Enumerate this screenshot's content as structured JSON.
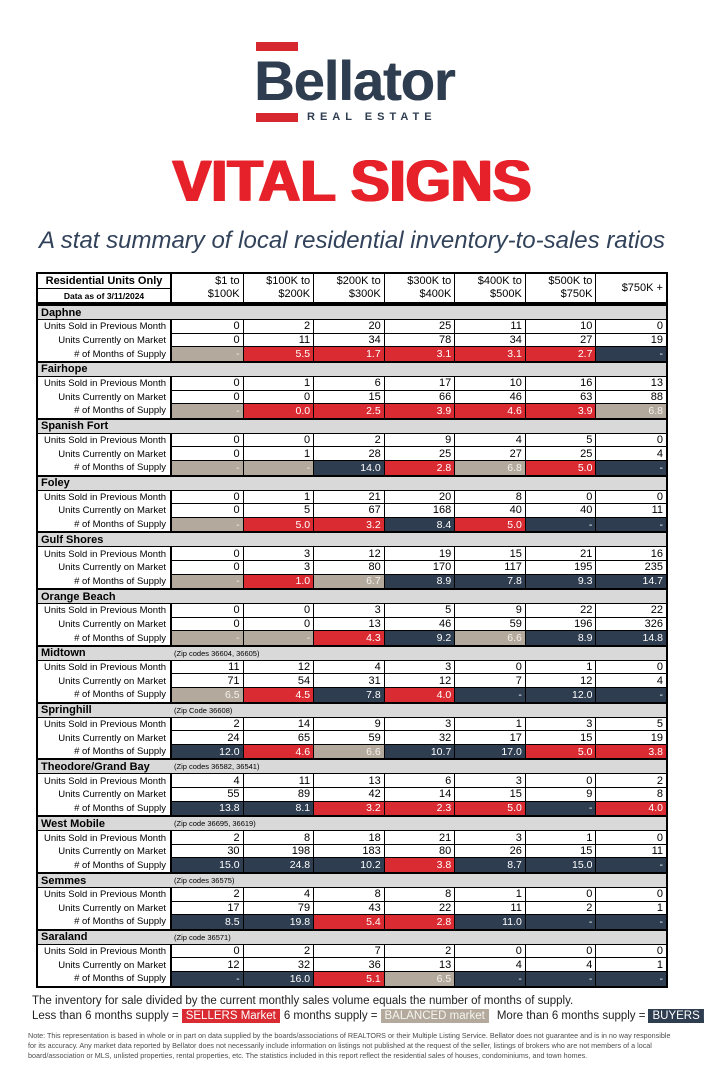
{
  "brand": {
    "name": "Bellator",
    "tagline": "REAL ESTATE"
  },
  "title": "VITAL SIGNS",
  "subtitle": "A stat summary of local residential inventory-to-sales ratios",
  "colors": {
    "red": "#d7282f",
    "title_red": "#e62129",
    "navy": "#2e3d50",
    "sellers": "#d92b31",
    "balanced": "#b3a99c",
    "buyers": "#2e3d50",
    "area_header_bg": "#d9d9d9"
  },
  "table": {
    "corner": {
      "line1": "Residential Units Only",
      "line2": "Data as of 3/11/2024"
    },
    "columns": [
      {
        "top": "$1 to",
        "bottom": "$100K"
      },
      {
        "top": "$100K to",
        "bottom": "$200K"
      },
      {
        "top": "$200K to",
        "bottom": "$300K"
      },
      {
        "top": "$300K to",
        "bottom": "$400K"
      },
      {
        "top": "$400K to",
        "bottom": "$500K"
      },
      {
        "top": "$500K to",
        "bottom": "$750K"
      },
      {
        "top": "$750K +",
        "bottom": ""
      }
    ],
    "row_labels": {
      "sold": "Units Sold in Previous Month",
      "on_market": "Units Currently on Market",
      "supply": "# of Months of Supply"
    },
    "areas": [
      {
        "name": "Daphne",
        "zip_note": "",
        "sold": [
          "0",
          "2",
          "20",
          "25",
          "11",
          "10",
          "0"
        ],
        "on_market": [
          "0",
          "11",
          "34",
          "78",
          "34",
          "27",
          "19"
        ],
        "supply": [
          "-",
          "5.5",
          "1.7",
          "3.1",
          "3.1",
          "2.7",
          "-"
        ],
        "supply_market": [
          "balanced",
          "sellers",
          "sellers",
          "sellers",
          "sellers",
          "sellers",
          "buyers"
        ]
      },
      {
        "name": "Fairhope",
        "zip_note": "",
        "sold": [
          "0",
          "1",
          "6",
          "17",
          "10",
          "16",
          "13"
        ],
        "on_market": [
          "0",
          "0",
          "15",
          "66",
          "46",
          "63",
          "88"
        ],
        "supply": [
          "-",
          "0.0",
          "2.5",
          "3.9",
          "4.6",
          "3.9",
          "6.8"
        ],
        "supply_market": [
          "balanced",
          "sellers",
          "sellers",
          "sellers",
          "sellers",
          "sellers",
          "balanced"
        ]
      },
      {
        "name": "Spanish Fort",
        "zip_note": "",
        "sold": [
          "0",
          "0",
          "2",
          "9",
          "4",
          "5",
          "0"
        ],
        "on_market": [
          "0",
          "1",
          "28",
          "25",
          "27",
          "25",
          "4"
        ],
        "supply": [
          "-",
          "-",
          "14.0",
          "2.8",
          "6.8",
          "5.0",
          "-"
        ],
        "supply_market": [
          "balanced",
          "balanced",
          "buyers",
          "sellers",
          "balanced",
          "sellers",
          "buyers"
        ]
      },
      {
        "name": "Foley",
        "zip_note": "",
        "sold": [
          "0",
          "1",
          "21",
          "20",
          "8",
          "0",
          "0"
        ],
        "on_market": [
          "0",
          "5",
          "67",
          "168",
          "40",
          "40",
          "11"
        ],
        "supply": [
          "-",
          "5.0",
          "3.2",
          "8.4",
          "5.0",
          "-",
          "-"
        ],
        "supply_market": [
          "balanced",
          "sellers",
          "sellers",
          "buyers",
          "sellers",
          "buyers",
          "buyers"
        ]
      },
      {
        "name": "Gulf Shores",
        "zip_note": "",
        "sold": [
          "0",
          "3",
          "12",
          "19",
          "15",
          "21",
          "16"
        ],
        "on_market": [
          "0",
          "3",
          "80",
          "170",
          "117",
          "195",
          "235"
        ],
        "supply": [
          "-",
          "1.0",
          "6.7",
          "8.9",
          "7.8",
          "9.3",
          "14.7"
        ],
        "supply_market": [
          "balanced",
          "sellers",
          "balanced",
          "buyers",
          "buyers",
          "buyers",
          "buyers"
        ]
      },
      {
        "name": "Orange Beach",
        "zip_note": "",
        "sold": [
          "0",
          "0",
          "3",
          "5",
          "9",
          "22",
          "22"
        ],
        "on_market": [
          "0",
          "0",
          "13",
          "46",
          "59",
          "196",
          "326"
        ],
        "supply": [
          "-",
          "-",
          "4.3",
          "9.2",
          "6.6",
          "8.9",
          "14.8"
        ],
        "supply_market": [
          "balanced",
          "balanced",
          "sellers",
          "buyers",
          "balanced",
          "buyers",
          "buyers"
        ]
      },
      {
        "name": "Midtown",
        "zip_note": "(Zip codes 36604, 36605)",
        "sold": [
          "11",
          "12",
          "4",
          "3",
          "0",
          "1",
          "0"
        ],
        "on_market": [
          "71",
          "54",
          "31",
          "12",
          "7",
          "12",
          "4"
        ],
        "supply": [
          "6.5",
          "4.5",
          "7.8",
          "4.0",
          "-",
          "12.0",
          "-"
        ],
        "supply_market": [
          "balanced",
          "sellers",
          "buyers",
          "sellers",
          "buyers",
          "buyers",
          "buyers"
        ]
      },
      {
        "name": "Springhill",
        "zip_note": "(Zip Code 36608)",
        "sold": [
          "2",
          "14",
          "9",
          "3",
          "1",
          "3",
          "5"
        ],
        "on_market": [
          "24",
          "65",
          "59",
          "32",
          "17",
          "15",
          "19"
        ],
        "supply": [
          "12.0",
          "4.6",
          "6.6",
          "10.7",
          "17.0",
          "5.0",
          "3.8"
        ],
        "supply_market": [
          "buyers",
          "sellers",
          "balanced",
          "buyers",
          "buyers",
          "sellers",
          "sellers"
        ]
      },
      {
        "name": "Theodore/Grand Bay",
        "zip_note": "(Zip codes 36582, 36541)",
        "sold": [
          "4",
          "11",
          "13",
          "6",
          "3",
          "0",
          "2"
        ],
        "on_market": [
          "55",
          "89",
          "42",
          "14",
          "15",
          "9",
          "8"
        ],
        "supply": [
          "13.8",
          "8.1",
          "3.2",
          "2.3",
          "5.0",
          "-",
          "4.0"
        ],
        "supply_market": [
          "buyers",
          "buyers",
          "sellers",
          "sellers",
          "sellers",
          "buyers",
          "sellers"
        ]
      },
      {
        "name": "West Mobile",
        "zip_note": "(Zip code 36695, 36619)",
        "sold": [
          "2",
          "8",
          "18",
          "21",
          "3",
          "1",
          "0"
        ],
        "on_market": [
          "30",
          "198",
          "183",
          "80",
          "26",
          "15",
          "11"
        ],
        "supply": [
          "15.0",
          "24.8",
          "10.2",
          "3.8",
          "8.7",
          "15.0",
          "-"
        ],
        "supply_market": [
          "buyers",
          "buyers",
          "buyers",
          "sellers",
          "buyers",
          "buyers",
          "buyers"
        ]
      },
      {
        "name": "Semmes",
        "zip_note": "(Zip codes 36575)",
        "sold": [
          "2",
          "4",
          "8",
          "8",
          "1",
          "0",
          "0"
        ],
        "on_market": [
          "17",
          "79",
          "43",
          "22",
          "11",
          "2",
          "1"
        ],
        "supply": [
          "8.5",
          "19.8",
          "5.4",
          "2.8",
          "11.0",
          "-",
          "-"
        ],
        "supply_market": [
          "buyers",
          "buyers",
          "sellers",
          "sellers",
          "buyers",
          "buyers",
          "buyers"
        ]
      },
      {
        "name": "Saraland",
        "zip_note": "(Zip code 36571)",
        "sold": [
          "0",
          "2",
          "7",
          "2",
          "0",
          "0",
          "0"
        ],
        "on_market": [
          "12",
          "32",
          "36",
          "13",
          "4",
          "4",
          "1"
        ],
        "supply": [
          "-",
          "16.0",
          "5.1",
          "6.5",
          "-",
          "-",
          "-"
        ],
        "supply_market": [
          "buyers",
          "buyers",
          "sellers",
          "balanced",
          "buyers",
          "buyers",
          "buyers"
        ]
      }
    ]
  },
  "legend": {
    "formula": "The inventory for sale divided by the current monthly sales volume equals the number of months of supply.",
    "sellers_prefix": "Less than 6 months supply =",
    "sellers_label": "SELLERS Market",
    "balanced_prefix": "6 months supply =",
    "balanced_label": "BALANCED market",
    "buyers_prefix": "More than 6 months supply =",
    "buyers_label": "BUYERS Market"
  },
  "note": "Note: This representation is based in whole or in part on data supplied by the boards/associations of REALTORS or their Multiple Listing Service. Bellator does not guarantee and is in no way responsible for its accuracy. Any market data reported by Bellator does not necessarily include information on listings not published at the request of the seller, listings of brokers who are not members of a local board/association or MLS, unlisted properties, rental properties, etc. The statistics included in this report reflect the residential sales of houses, condominiums, and town homes."
}
